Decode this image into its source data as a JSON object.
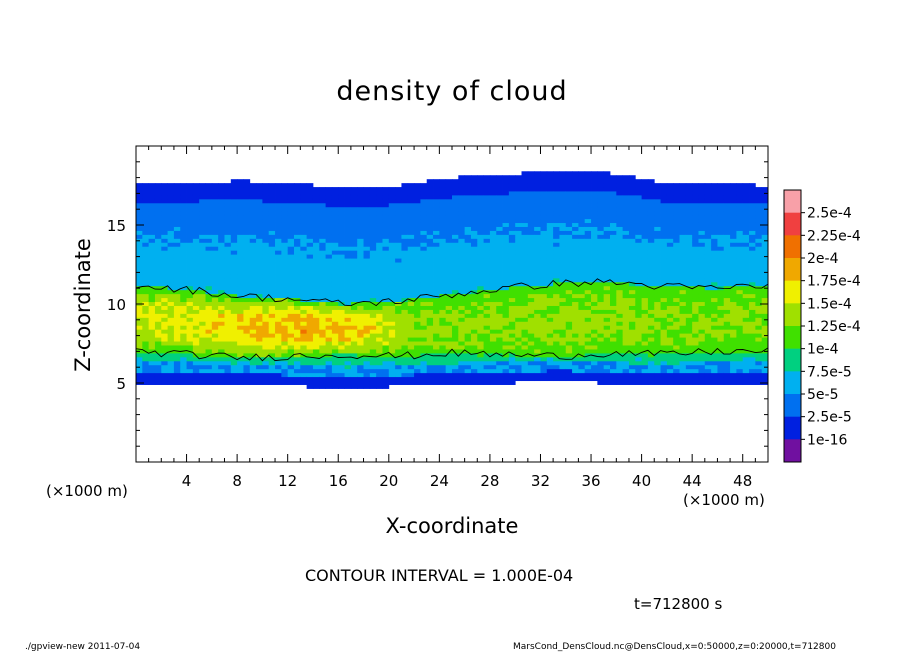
{
  "chart_data": {
    "type": "heatmap",
    "title": "density of cloud",
    "xlabel": "X-coordinate",
    "ylabel": "Z-coordinate",
    "x_unit": "(×1000 m)",
    "xlim": [
      0,
      50
    ],
    "ylim": [
      0,
      20
    ],
    "x_ticks": [
      4,
      8,
      12,
      16,
      20,
      24,
      28,
      32,
      36,
      40,
      44,
      48
    ],
    "y_ticks": [
      5,
      10,
      15
    ],
    "colorbar": {
      "labels": [
        "2.5e-4",
        "2.25e-4",
        "2e-4",
        "1.75e-4",
        "1.5e-4",
        "1.25e-4",
        "1e-4",
        "7.5e-5",
        "5e-5",
        "2.5e-5",
        "1e-16"
      ],
      "colors": [
        "#f8a0a8",
        "#f04040",
        "#f07000",
        "#f0a800",
        "#f0f000",
        "#a0e000",
        "#40e000",
        "#00d080",
        "#00b0f0",
        "#0070f0",
        "#0020e0",
        "#7010a0"
      ]
    },
    "contour_interval": "1.000E-04",
    "contour_levels": [
      0.0001
    ],
    "field": {
      "lower_edge": [
        5.0,
        5.0,
        4.9,
        4.8,
        4.7,
        4.8,
        4.9,
        5.0,
        5.1,
        5.0,
        4.9,
        5.0,
        5.0
      ],
      "upper_edge": [
        17.6,
        17.7,
        17.8,
        17.6,
        17.4,
        17.5,
        18.0,
        18.2,
        18.4,
        18.3,
        17.7,
        17.6,
        17.5
      ],
      "band_bottom": [
        7.0,
        6.8,
        6.6,
        6.7,
        6.8,
        6.7,
        6.9,
        6.8,
        6.7,
        6.9,
        6.8,
        7.0,
        7.0
      ],
      "band_top": [
        11.2,
        10.9,
        10.5,
        10.3,
        10.0,
        10.2,
        10.6,
        11.0,
        11.3,
        11.4,
        11.1,
        11.0,
        11.2
      ],
      "band_peak": [
        0.00014,
        0.00015,
        0.000165,
        0.000175,
        0.00017,
        0.00013,
        0.00012,
        0.00012,
        0.000125,
        0.00012,
        0.00012,
        0.000115,
        0.00012
      ]
    }
  },
  "contour_note": "CONTOUR INTERVAL = 1.000E-04",
  "time_label": "t=712800 s",
  "footer": {
    "left": "./gpview-new   2011-07-04",
    "right": "MarsCond_DensCloud.nc@DensCloud,x=0:50000,z=0:20000,t=712800"
  }
}
